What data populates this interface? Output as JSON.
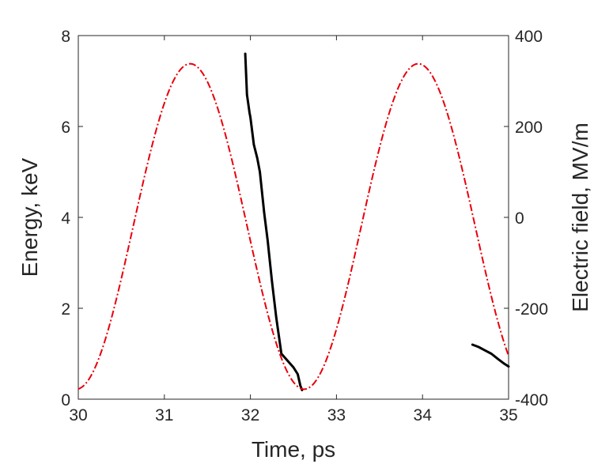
{
  "chart_data": {
    "type": "line",
    "title": "",
    "xlabel": "Time, ps",
    "ylabel_left": "Energy, keV",
    "ylabel_right": "Electric field, MV/m",
    "xlim": [
      30,
      35
    ],
    "ylim_left": [
      0,
      8
    ],
    "ylim_right": [
      -400,
      400
    ],
    "x_ticks": [
      "30",
      "31",
      "32",
      "33",
      "34",
      "35"
    ],
    "y_left_ticks": [
      "0",
      "2",
      "4",
      "6",
      "8"
    ],
    "y_right_ticks": [
      "-400",
      "-200",
      "0",
      "200",
      "400"
    ],
    "grid": false,
    "legend": "none",
    "series": [
      {
        "axis": "left",
        "color": "#000000",
        "style": "solid",
        "segments": [
          {
            "x": [
              31.94,
              31.96,
              31.99,
              32.0,
              32.04,
              32.08,
              32.11,
              32.16,
              32.2,
              32.25,
              32.3,
              32.36,
              32.43,
              32.5,
              32.55,
              32.58,
              32.6
            ],
            "y": [
              7.6,
              6.7,
              6.3,
              6.2,
              5.6,
              5.3,
              5.0,
              4.1,
              3.5,
              2.6,
              1.8,
              1.0,
              0.85,
              0.7,
              0.55,
              0.3,
              0.2
            ]
          },
          {
            "x": [
              34.58,
              34.65,
              34.72,
              34.8,
              34.88,
              34.95,
              35.0
            ],
            "y": [
              1.2,
              1.15,
              1.08,
              1.0,
              0.88,
              0.78,
              0.72
            ]
          }
        ]
      },
      {
        "axis": "right",
        "color": "#e8000b",
        "style": "dashdot",
        "function": "sine",
        "amplitude": 358,
        "offset": -20,
        "period_ps": 2.65,
        "peak_x": 31.3,
        "x_range": [
          30,
          35
        ]
      }
    ]
  }
}
